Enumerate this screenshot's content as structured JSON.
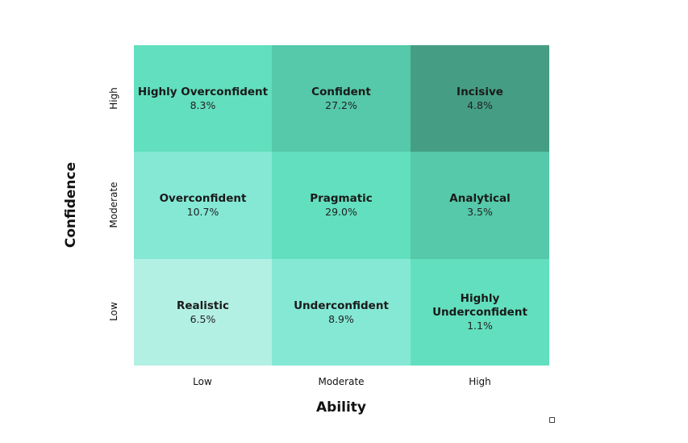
{
  "chart_data": {
    "type": "heatmap",
    "title": "",
    "xlabel": "Ability",
    "ylabel": "Confidence",
    "x_categories": [
      "Low",
      "Moderate",
      "High"
    ],
    "y_categories": [
      "High",
      "Moderate",
      "Low"
    ],
    "cells": [
      [
        {
          "label": "Highly Overconfident",
          "value_text": "8.3%",
          "value": 8.3,
          "color": "#62dfbe"
        },
        {
          "label": "Confident",
          "value_text": "27.2%",
          "value": 27.2,
          "color": "#55c9a9"
        },
        {
          "label": "Incisive",
          "value_text": "4.8%",
          "value": 4.8,
          "color": "#459e83"
        }
      ],
      [
        {
          "label": "Overconfident",
          "value_text": "10.7%",
          "value": 10.7,
          "color": "#84e8d5"
        },
        {
          "label": "Pragmatic",
          "value_text": "29.0%",
          "value": 29.0,
          "color": "#62dfbe"
        },
        {
          "label": "Analytical",
          "value_text": "3.5%",
          "value": 3.5,
          "color": "#55c9a9"
        }
      ],
      [
        {
          "label": "Realistic",
          "value_text": "6.5%",
          "value": 6.5,
          "color": "#b3f0e4"
        },
        {
          "label": "Underconfident",
          "value_text": "8.9%",
          "value": 8.9,
          "color": "#84e8d5"
        },
        {
          "label": "Highly\nUnderconfident",
          "value_text": "1.1%",
          "value": 1.1,
          "color": "#62dfbe"
        }
      ]
    ],
    "grid": false,
    "legend": "none"
  }
}
